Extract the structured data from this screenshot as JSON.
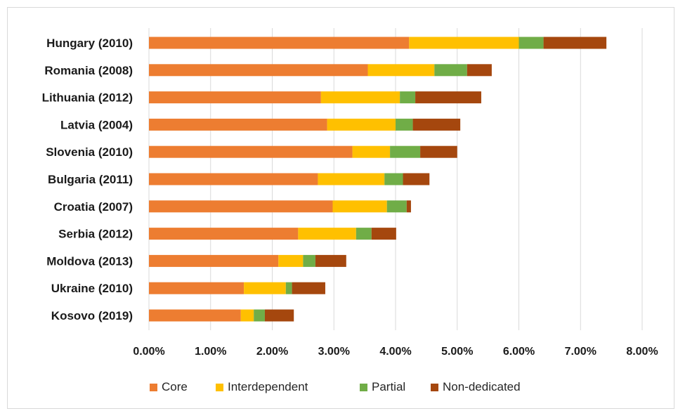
{
  "chart_data": {
    "type": "bar",
    "orientation": "horizontal",
    "stacked": true,
    "categories": [
      "Hungary (2010)",
      "Romania (2008)",
      "Lithuania (2012)",
      "Latvia (2004)",
      "Slovenia (2010)",
      "Bulgaria (2011)",
      "Croatia (2007)",
      "Serbia (2012)",
      "Moldova (2013)",
      "Ukraine (2010)",
      "Kosovo (2019)"
    ],
    "series": [
      {
        "name": "Core",
        "color": "#ED7D31",
        "values": [
          4.22,
          3.55,
          2.79,
          2.89,
          3.3,
          2.74,
          2.98,
          2.42,
          2.1,
          1.54,
          1.49
        ]
      },
      {
        "name": "Interdependent",
        "color": "#FFC000",
        "values": [
          1.78,
          1.08,
          1.28,
          1.11,
          0.61,
          1.08,
          0.88,
          0.94,
          0.4,
          0.68,
          0.21
        ]
      },
      {
        "name": "Partial",
        "color": "#70AD47",
        "values": [
          0.4,
          0.53,
          0.25,
          0.28,
          0.49,
          0.3,
          0.32,
          0.25,
          0.2,
          0.1,
          0.18
        ]
      },
      {
        "name": "Non-dedicated",
        "color": "#A5470E",
        "values": [
          1.02,
          0.4,
          1.07,
          0.77,
          0.6,
          0.43,
          0.07,
          0.4,
          0.5,
          0.54,
          0.47
        ]
      }
    ],
    "xlim": [
      0,
      8
    ],
    "x_ticks": [
      "0.00%",
      "1.00%",
      "2.00%",
      "3.00%",
      "4.00%",
      "5.00%",
      "6.00%",
      "7.00%",
      "8.00%"
    ],
    "x_tick_values": [
      0,
      1,
      2,
      3,
      4,
      5,
      6,
      7,
      8
    ],
    "grid": true,
    "legend_position": "bottom"
  }
}
